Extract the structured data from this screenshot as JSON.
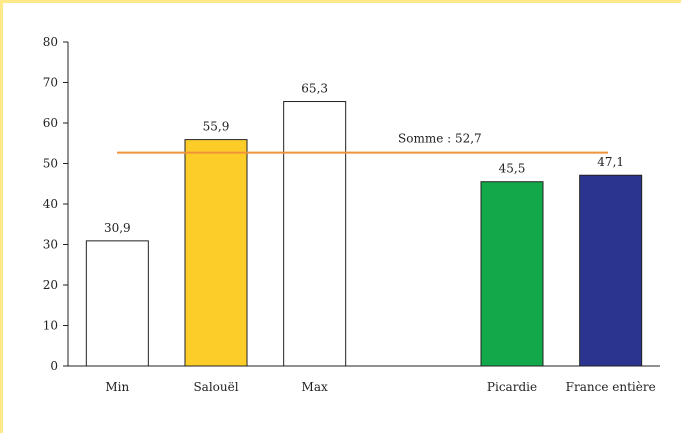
{
  "chart_data": {
    "type": "bar",
    "categories": [
      "Min",
      "Salouël",
      "Max",
      "",
      "Picardie",
      "France entière"
    ],
    "values": [
      30.9,
      55.9,
      65.3,
      null,
      45.5,
      47.1
    ],
    "data_labels": [
      "30,9",
      "55,9",
      "65,3",
      "",
      "45,5",
      "47,1"
    ],
    "bar_colors": [
      "#ffffff",
      "#fccd29",
      "#ffffff",
      null,
      "#11a94a",
      "#2b3590"
    ],
    "ylim": [
      0,
      80
    ],
    "yticks": [
      "0",
      "10",
      "20",
      "30",
      "40",
      "50",
      "60",
      "70",
      "80"
    ],
    "reference_line": {
      "value": 52.7,
      "label": "Somme : 52,7",
      "color": "#f0923a"
    },
    "grid": false,
    "legend": "none"
  },
  "colors": {
    "frame": "#fde98a",
    "axis": "#222222"
  }
}
